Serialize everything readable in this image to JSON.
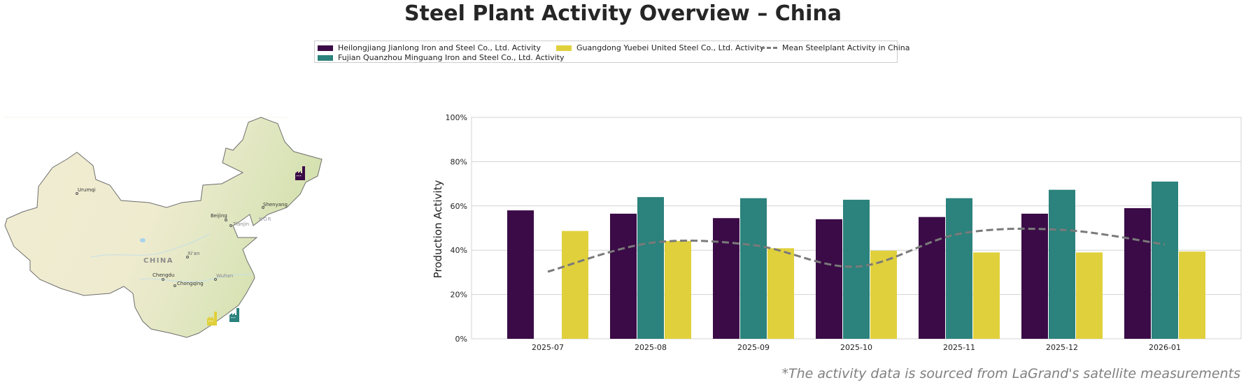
{
  "title": "Steel Plant Activity Overview – China",
  "footnote": "*The activity data is sourced from LaGrand's satellite measurements",
  "legend": [
    {
      "label": "Heilongjiang Jianlong Iron and Steel Co., Ltd. Activity",
      "color": "#3b0b47"
    },
    {
      "label": "Fujian Quanzhou Minguang Iron and Steel Co., Ltd. Activity",
      "color": "#2c827c"
    },
    {
      "label": "Guangdong Yuebei United Steel Co., Ltd. Activity",
      "color": "#e0d03c"
    },
    {
      "label": "Mean Steelplant Activity in China",
      "color": "#7a7a7a"
    }
  ],
  "map": {
    "country_label": "CHINA",
    "cities": [
      "Urumqi",
      "Beijing",
      "Tianjin",
      "Shenyang",
      "Xi'an",
      "Chengdu",
      "Chongqing",
      "Wuhan"
    ],
    "sea_label": "NOR",
    "plant_icons": [
      "factory-icon-heilongjiang",
      "factory-icon-fujian",
      "factory-icon-guangdong"
    ]
  },
  "chart_data": {
    "type": "bar",
    "title": "",
    "xlabel": "",
    "ylabel": "Production Activity",
    "ylim": [
      0,
      100
    ],
    "yticks": [
      "0%",
      "20%",
      "40%",
      "60%",
      "80%",
      "100%"
    ],
    "grid": true,
    "legend_placement": "top-center",
    "categories": [
      "2025-07",
      "2025-08",
      "2025-09",
      "2025-10",
      "2025-11",
      "2025-12",
      "2026-01"
    ],
    "series": [
      {
        "name": "Heilongjiang Jianlong Iron and Steel Co., Ltd. Activity",
        "type": "bar",
        "color": "#3b0b47",
        "values": [
          58,
          56.5,
          54.5,
          54,
          55,
          56.5,
          59
        ]
      },
      {
        "name": "Fujian Quanzhou Minguang Iron and Steel Co., Ltd. Activity",
        "type": "bar",
        "color": "#2c827c",
        "values": [
          null,
          64,
          63.5,
          62.8,
          63.5,
          67.3,
          71
        ]
      },
      {
        "name": "Guangdong Yuebei United Steel Co., Ltd. Activity",
        "type": "bar",
        "color": "#e0d03c",
        "values": [
          48.7,
          44.2,
          40.9,
          39.8,
          39,
          39,
          39.4
        ]
      },
      {
        "name": "Mean Steelplant Activity in China",
        "type": "line",
        "style": "dashed",
        "color": "#7a7a7a",
        "values": [
          30.3,
          43.3,
          42.3,
          32.6,
          47.4,
          49.2,
          42.6
        ]
      }
    ]
  }
}
